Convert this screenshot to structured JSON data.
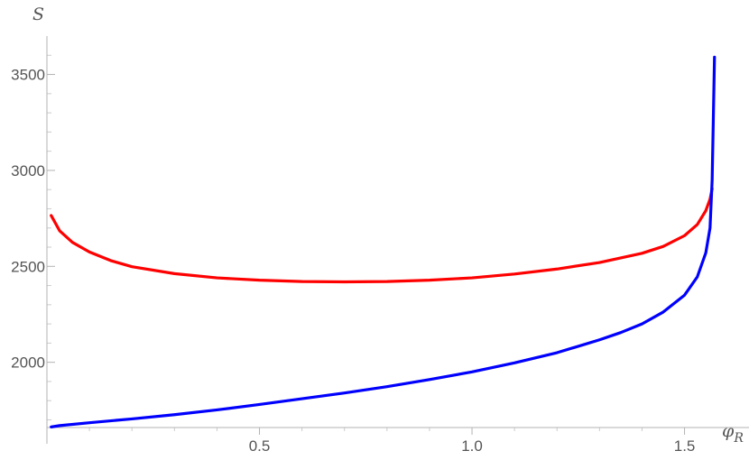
{
  "chart_data": {
    "type": "line",
    "xlabel": "φ",
    "xlabel_sub": "R",
    "ylabel": "S",
    "xlim": [
      0,
      1.571
    ],
    "ylim": [
      1660,
      3700
    ],
    "x_ticks": [
      {
        "value": 0.5,
        "label": "0.5"
      },
      {
        "value": 1.0,
        "label": "1.0"
      },
      {
        "value": 1.5,
        "label": "1.5"
      }
    ],
    "y_ticks": [
      {
        "value": 2000,
        "label": "2000"
      },
      {
        "value": 2500,
        "label": "2500"
      },
      {
        "value": 3000,
        "label": "3000"
      },
      {
        "value": 3500,
        "label": "3500"
      }
    ],
    "grid": false,
    "series": [
      {
        "color": "#ff0000",
        "points": [
          [
            0.01,
            2765
          ],
          [
            0.03,
            2685
          ],
          [
            0.06,
            2625
          ],
          [
            0.1,
            2575
          ],
          [
            0.15,
            2530
          ],
          [
            0.2,
            2498
          ],
          [
            0.3,
            2462
          ],
          [
            0.4,
            2440
          ],
          [
            0.5,
            2428
          ],
          [
            0.6,
            2421
          ],
          [
            0.7,
            2419
          ],
          [
            0.8,
            2421
          ],
          [
            0.9,
            2428
          ],
          [
            1.0,
            2440
          ],
          [
            1.1,
            2460
          ],
          [
            1.2,
            2486
          ],
          [
            1.3,
            2520
          ],
          [
            1.4,
            2568
          ],
          [
            1.45,
            2604
          ],
          [
            1.5,
            2660
          ],
          [
            1.53,
            2718
          ],
          [
            1.55,
            2790
          ],
          [
            1.56,
            2850
          ],
          [
            1.565,
            2905
          ]
        ]
      },
      {
        "color": "#0000ff",
        "points": [
          [
            0.01,
            1663
          ],
          [
            0.03,
            1670
          ],
          [
            0.1,
            1685
          ],
          [
            0.2,
            1705
          ],
          [
            0.3,
            1727
          ],
          [
            0.4,
            1752
          ],
          [
            0.5,
            1780
          ],
          [
            0.6,
            1810
          ],
          [
            0.7,
            1840
          ],
          [
            0.8,
            1873
          ],
          [
            0.9,
            1910
          ],
          [
            1.0,
            1950
          ],
          [
            1.1,
            1997
          ],
          [
            1.2,
            2050
          ],
          [
            1.3,
            2117
          ],
          [
            1.35,
            2155
          ],
          [
            1.4,
            2200
          ],
          [
            1.45,
            2262
          ],
          [
            1.5,
            2350
          ],
          [
            1.53,
            2445
          ],
          [
            1.55,
            2570
          ],
          [
            1.56,
            2700
          ],
          [
            1.565,
            2950
          ],
          [
            1.568,
            3300
          ],
          [
            1.5705,
            3590
          ]
        ]
      }
    ]
  }
}
